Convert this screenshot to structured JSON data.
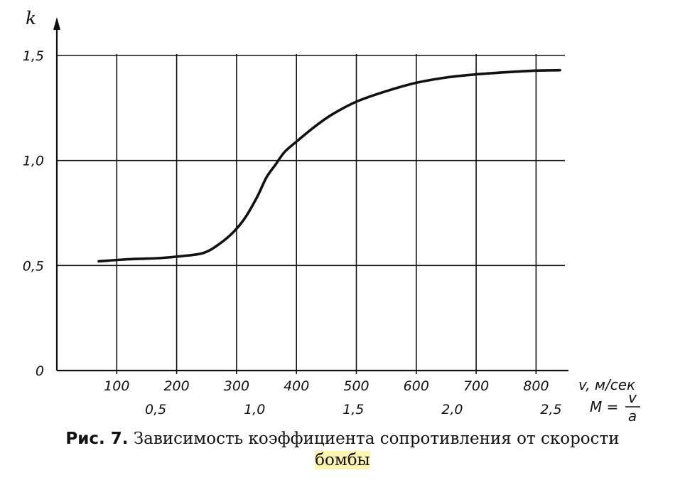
{
  "figure": {
    "caption_prefix": "Рис. 7.",
    "caption_text": "Зависимость коэффициента сопротивления от скорости",
    "caption_end": "бомбы"
  },
  "chart_data": {
    "type": "line",
    "ylabel": "k",
    "xlabel": "v, м/сек",
    "mach_label": "M =",
    "mach_fraction": {
      "numerator": "v",
      "denominator": "a"
    },
    "xlim": [
      0,
      840
    ],
    "ylim": [
      0,
      1.5
    ],
    "x_ticks": [
      100,
      200,
      300,
      400,
      500,
      600,
      700,
      800
    ],
    "x_tick_labels": [
      "100",
      "200",
      "300",
      "400",
      "500",
      "600",
      "700",
      "800"
    ],
    "mach_ticks": [
      0.5,
      1.0,
      1.5,
      2.0,
      2.5
    ],
    "mach_tick_labels": [
      "0,5",
      "1,0",
      "1,5",
      "2,0",
      "2,5"
    ],
    "y_ticks": [
      0,
      0.5,
      1.0,
      1.5
    ],
    "y_tick_labels": [
      "0",
      "0,5",
      "1,0",
      "1,5"
    ],
    "grid": true,
    "x": [
      70,
      120,
      170,
      210,
      245,
      270,
      295,
      315,
      335,
      350,
      365,
      380,
      400,
      430,
      460,
      500,
      550,
      600,
      650,
      700,
      750,
      800,
      840
    ],
    "y": [
      0.52,
      0.53,
      0.535,
      0.545,
      0.56,
      0.6,
      0.66,
      0.73,
      0.83,
      0.92,
      0.98,
      1.04,
      1.09,
      1.16,
      1.22,
      1.28,
      1.33,
      1.37,
      1.395,
      1.41,
      1.42,
      1.428,
      1.43
    ]
  }
}
